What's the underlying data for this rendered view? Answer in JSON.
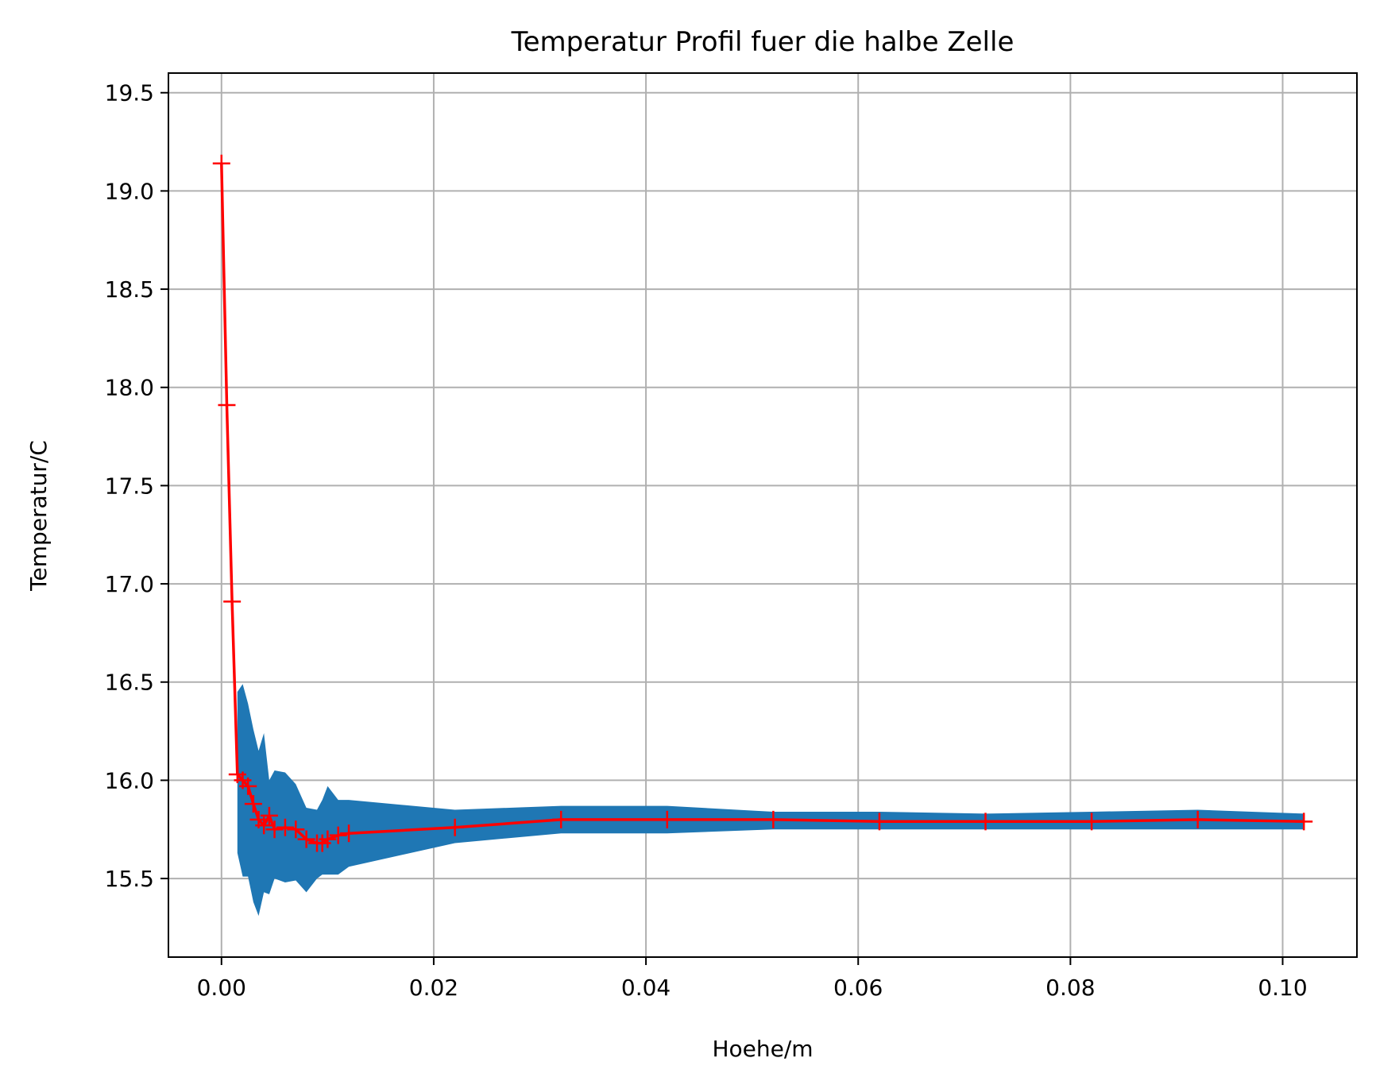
{
  "chart_data": {
    "type": "line",
    "title": "Temperatur Profil fuer die halbe Zelle",
    "xlabel": "Hoehe/m",
    "ylabel": "Temperatur/C",
    "xlim": [
      -0.005,
      0.107
    ],
    "ylim": [
      15.1,
      19.6
    ],
    "xticks": [
      0.0,
      0.02,
      0.04,
      0.06,
      0.08,
      0.1
    ],
    "xtick_labels": [
      "0.00",
      "0.02",
      "0.04",
      "0.06",
      "0.08",
      "0.10"
    ],
    "yticks": [
      15.5,
      16.0,
      16.5,
      17.0,
      17.5,
      18.0,
      18.5,
      19.0,
      19.5
    ],
    "ytick_labels": [
      "15.5",
      "16.0",
      "16.5",
      "17.0",
      "17.5",
      "18.0",
      "18.5",
      "19.0",
      "19.5"
    ],
    "grid": true,
    "series": [
      {
        "type": "line",
        "color": "#ff0000",
        "marker": "+",
        "x": [
          0.0,
          0.0005,
          0.001,
          0.0015,
          0.002,
          0.0025,
          0.003,
          0.0035,
          0.004,
          0.0045,
          0.005,
          0.006,
          0.007,
          0.008,
          0.009,
          0.0095,
          0.01,
          0.011,
          0.012,
          0.022,
          0.032,
          0.042,
          0.052,
          0.062,
          0.072,
          0.082,
          0.092,
          0.102
        ],
        "y": [
          19.14,
          17.91,
          16.91,
          16.03,
          16.0,
          15.97,
          15.88,
          15.8,
          15.77,
          15.82,
          15.75,
          15.76,
          15.75,
          15.7,
          15.68,
          15.68,
          15.7,
          15.72,
          15.73,
          15.76,
          15.8,
          15.8,
          15.8,
          15.79,
          15.79,
          15.79,
          15.8,
          15.79
        ]
      },
      {
        "type": "band",
        "color": "#1f77b4",
        "x": [
          0.0015,
          0.002,
          0.0025,
          0.003,
          0.0035,
          0.004,
          0.0045,
          0.005,
          0.006,
          0.007,
          0.008,
          0.009,
          0.0095,
          0.01,
          0.011,
          0.012,
          0.022,
          0.032,
          0.042,
          0.052,
          0.062,
          0.072,
          0.082,
          0.092,
          0.102
        ],
        "upper": [
          16.45,
          16.49,
          16.39,
          16.26,
          16.15,
          16.24,
          16.0,
          16.05,
          16.04,
          15.98,
          15.86,
          15.85,
          15.9,
          15.97,
          15.9,
          15.9,
          15.85,
          15.87,
          15.87,
          15.84,
          15.84,
          15.83,
          15.84,
          15.85,
          15.83
        ],
        "lower": [
          15.63,
          15.51,
          15.51,
          15.38,
          15.31,
          15.43,
          15.42,
          15.5,
          15.48,
          15.49,
          15.43,
          15.5,
          15.52,
          15.52,
          15.52,
          15.56,
          15.68,
          15.73,
          15.73,
          15.75,
          15.75,
          15.75,
          15.75,
          15.75,
          15.75
        ]
      }
    ]
  }
}
